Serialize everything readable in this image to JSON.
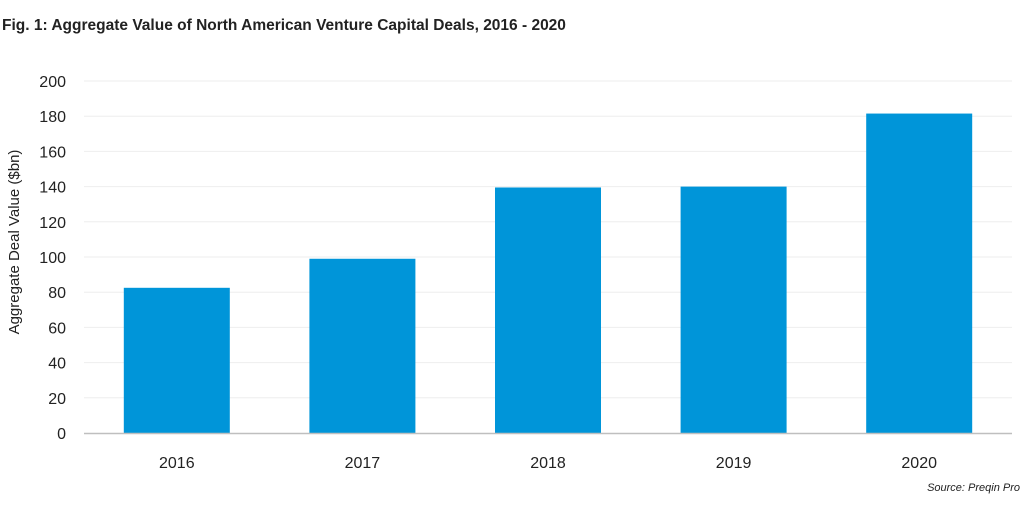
{
  "figure": {
    "title": "Fig. 1: Aggregate Value of North American Venture Capital Deals, 2016 - 2020",
    "source": "Source: Preqin Pro"
  },
  "chart_data": {
    "type": "bar",
    "title": "Fig. 1: Aggregate Value of North American Venture Capital Deals, 2016 - 2020",
    "xlabel": "",
    "ylabel": "Aggregate Deal Value ($bn)",
    "categories": [
      "2016",
      "2017",
      "2018",
      "2019",
      "2020"
    ],
    "series": [
      {
        "name": "Aggregate Deal Value ($bn)",
        "values": [
          82.5,
          99,
          139.5,
          140,
          181.5
        ]
      }
    ],
    "ylim": [
      0,
      200
    ],
    "yticks": [
      0,
      20,
      40,
      60,
      80,
      100,
      120,
      140,
      160,
      180,
      200
    ],
    "grid": true,
    "legend": "none",
    "bar_color": "#0095d9",
    "grid_color": "#eeeeee",
    "axis_color": "#bfbfbf"
  }
}
